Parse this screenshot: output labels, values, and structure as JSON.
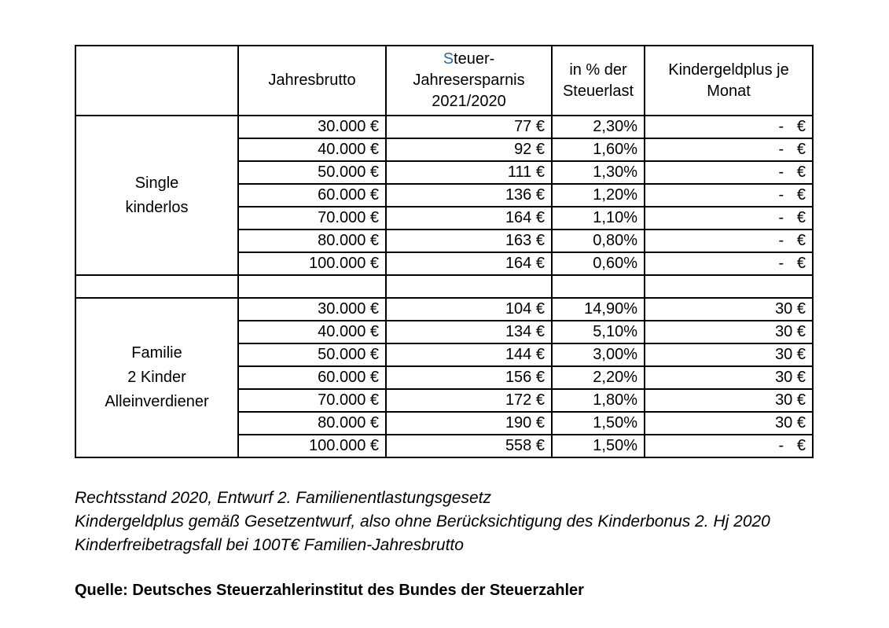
{
  "colors": {
    "accent_blue": "#35679e",
    "border": "#000000",
    "text": "#000000",
    "background": "#ffffff"
  },
  "table": {
    "header": {
      "jahresbrutto": "Jahresbrutto",
      "steuer_s": "S",
      "steuer_rest": "teuer-",
      "steuer_line2": "Jahresersparnis",
      "steuer_line3": "2021/2020",
      "pct_line1": "in % der",
      "pct_line2": "Steuerlast",
      "kg_line1": "Kindergeldplus je",
      "kg_line2": "Monat"
    },
    "groups": [
      {
        "label_lines": [
          "Single",
          "kinderlos"
        ],
        "rows": [
          {
            "brutto": "30.000 €",
            "saving": "77 €",
            "pct": "2,30%",
            "kg": "-   €"
          },
          {
            "brutto": "40.000 €",
            "saving": "92 €",
            "pct": "1,60%",
            "kg": "-   €"
          },
          {
            "brutto": "50.000 €",
            "saving": "111 €",
            "pct": "1,30%",
            "kg": "-   €"
          },
          {
            "brutto": "60.000 €",
            "saving": "136 €",
            "pct": "1,20%",
            "kg": "-   €"
          },
          {
            "brutto": "70.000 €",
            "saving": "164 €",
            "pct": "1,10%",
            "kg": "-   €"
          },
          {
            "brutto": "80.000 €",
            "saving": "163 €",
            "pct": "0,80%",
            "kg": "-   €"
          },
          {
            "brutto": "100.000 €",
            "saving": "164 €",
            "pct": "0,60%",
            "kg": "-   €"
          }
        ]
      },
      {
        "label_lines": [
          "Familie",
          "2 Kinder",
          "Alleinverdiener"
        ],
        "rows": [
          {
            "brutto": "30.000 €",
            "saving": "104 €",
            "pct": "14,90%",
            "kg": "30 €"
          },
          {
            "brutto": "40.000 €",
            "saving": "134 €",
            "pct": "5,10%",
            "kg": "30 €"
          },
          {
            "brutto": "50.000 €",
            "saving": "144 €",
            "pct": "3,00%",
            "kg": "30 €"
          },
          {
            "brutto": "60.000 €",
            "saving": "156 €",
            "pct": "2,20%",
            "kg": "30 €"
          },
          {
            "brutto": "70.000 €",
            "saving": "172 €",
            "pct": "1,80%",
            "kg": "30 €"
          },
          {
            "brutto": "80.000 €",
            "saving": "190 €",
            "pct": "1,50%",
            "kg": "30 €"
          },
          {
            "brutto": "100.000 €",
            "saving": "558 €",
            "pct": "1,50%",
            "kg": "-   €"
          }
        ]
      }
    ]
  },
  "footnotes": [
    "Rechtsstand 2020, Entwurf 2. Familienentlastungsgesetz",
    "Kindergeldplus gemäß Gesetzentwurf, also ohne Berücksichtigung des Kinderbonus 2. Hj 2020",
    "Kinderfreibetragsfall bei 100T€ Familien-Jahresbrutto"
  ],
  "source": "Quelle: Deutsches Steuerzahlerinstitut des Bundes der Steuerzahler"
}
